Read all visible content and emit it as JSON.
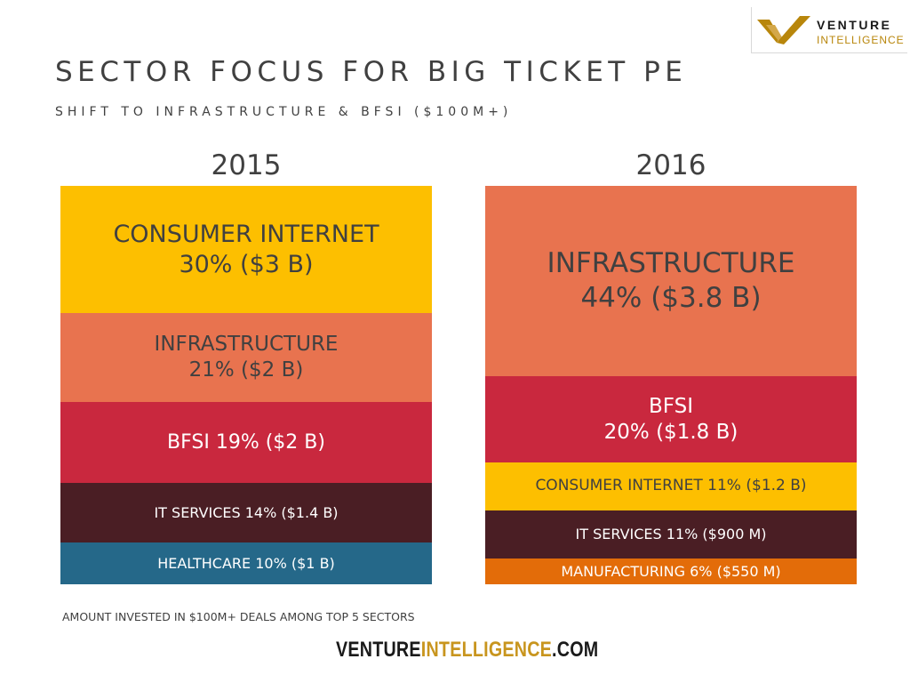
{
  "logo": {
    "word1": "VENTURE",
    "word2": "INTELLIGENCE",
    "gold": "#b8860b"
  },
  "title": "SECTOR FOCUS FOR BIG TICKET PE",
  "subtitle": "SHIFT TO INFRASTRUCTURE & BFSI ($100M+)",
  "chart_data": {
    "type": "bar",
    "subtype": "stacked-100",
    "categories": [
      "2015",
      "2016"
    ],
    "columns": [
      {
        "year": "2015",
        "segments": [
          {
            "label": "CONSUMER INTERNET\n30% ($3 B)",
            "sector": "CONSUMER INTERNET",
            "percent": 30,
            "amount": "$3 B",
            "color": "#fdbf00",
            "text_color": "#404040"
          },
          {
            "label": "INFRASTRUCTURE\n21% ($2 B)",
            "sector": "INFRASTRUCTURE",
            "percent": 21,
            "amount": "$2 B",
            "color": "#e8734f",
            "text_color": "#404040"
          },
          {
            "label": "BFSI 19% ($2 B)",
            "sector": "BFSI",
            "percent": 19,
            "amount": "$2 B",
            "color": "#c9283e",
            "text_color": "#ffffff"
          },
          {
            "label": "IT SERVICES 14% ($1.4 B)",
            "sector": "IT SERVICES",
            "percent": 14,
            "amount": "$1.4 B",
            "color": "#4a1e24",
            "text_color": "#ffffff"
          },
          {
            "label": "HEALTHCARE 10% ($1 B)",
            "sector": "HEALTHCARE",
            "percent": 10,
            "amount": "$1 B",
            "color": "#256889",
            "text_color": "#ffffff"
          }
        ]
      },
      {
        "year": "2016",
        "segments": [
          {
            "label": "INFRASTRUCTURE\n44% ($3.8 B)",
            "sector": "INFRASTRUCTURE",
            "percent": 44,
            "amount": "$3.8 B",
            "color": "#e8734f",
            "text_color": "#404040"
          },
          {
            "label": "BFSI\n20% ($1.8 B)",
            "sector": "BFSI",
            "percent": 20,
            "amount": "$1.8 B",
            "color": "#c9283e",
            "text_color": "#ffffff"
          },
          {
            "label": "CONSUMER INTERNET 11% ($1.2 B)",
            "sector": "CONSUMER INTERNET",
            "percent": 11,
            "amount": "$1.2 B",
            "color": "#fdbf00",
            "text_color": "#404040"
          },
          {
            "label": "IT SERVICES 11% ($900 M)",
            "sector": "IT SERVICES",
            "percent": 11,
            "amount": "$900 M",
            "color": "#4a1e24",
            "text_color": "#ffffff"
          },
          {
            "label": "MANUFACTURING 6% ($550 M)",
            "sector": "MANUFACTURING",
            "percent": 6,
            "amount": "$550 M",
            "color": "#e36c09",
            "text_color": "#ffffff"
          }
        ]
      }
    ]
  },
  "footnote": "AMOUNT INVESTED IN $100M+ DEALS AMONG TOP 5 SECTORS",
  "brand": {
    "part1": "VENTURE",
    "part2": "INTELLIGENCE",
    "part3": ".COM",
    "accent": "#c8951e"
  }
}
